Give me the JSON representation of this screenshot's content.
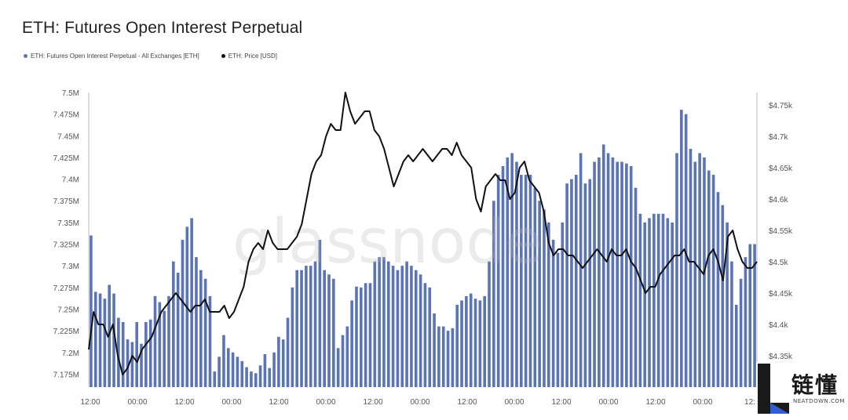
{
  "title": "ETH: Futures Open Interest Perpetual",
  "legend": [
    {
      "label": "ETH: Futures Open Interest Perpetual - All Exchanges [ETH]",
      "color": "#5b74b6"
    },
    {
      "label": "ETH: Price [USD]",
      "color": "#111111"
    }
  ],
  "watermark": "glassnode",
  "logo": {
    "text": "链懂",
    "sub": "NEATDOWN.COM",
    "mark": "L"
  },
  "chart_data": {
    "type": "bar",
    "title": "ETH: Futures Open Interest Perpetual",
    "x_tick_labels": [
      "12:00",
      "00:00",
      "12:00",
      "00:00",
      "12:00",
      "00:00",
      "12:00",
      "00:00",
      "12:00",
      "00:00",
      "12:00",
      "00:00",
      "12:00",
      "00:00",
      "12:"
    ],
    "y_left": {
      "ticks": [
        "7.175M",
        "7.2M",
        "7.225M",
        "7.25M",
        "7.275M",
        "7.3M",
        "7.325M",
        "7.35M",
        "7.375M",
        "7.4M",
        "7.425M",
        "7.45M",
        "7.475M",
        "7.5M"
      ],
      "range": [
        7.16,
        7.5
      ]
    },
    "y_right": {
      "ticks": [
        "$4.35k",
        "$4.4k",
        "$4.45k",
        "$4.5k",
        "$4.55k",
        "$4.6k",
        "$4.65k",
        "$4.7k",
        "$4.75k"
      ],
      "range": [
        4.3,
        4.77
      ]
    },
    "series": [
      {
        "name": "ETH: Futures Open Interest Perpetual - All Exchanges [ETH]",
        "type": "bar",
        "axis": "left",
        "unit": "M ETH",
        "values": [
          7.335,
          7.27,
          7.268,
          7.262,
          7.278,
          7.268,
          7.24,
          7.235,
          7.215,
          7.212,
          7.235,
          7.21,
          7.235,
          7.238,
          7.265,
          7.258,
          7.248,
          7.265,
          7.305,
          7.292,
          7.33,
          7.345,
          7.355,
          7.31,
          7.295,
          7.285,
          7.265,
          7.178,
          7.195,
          7.22,
          7.205,
          7.2,
          7.195,
          7.19,
          7.183,
          7.178,
          7.176,
          7.185,
          7.198,
          7.182,
          7.2,
          7.218,
          7.215,
          7.24,
          7.275,
          7.295,
          7.295,
          7.3,
          7.3,
          7.305,
          7.33,
          7.295,
          7.29,
          7.285,
          7.205,
          7.22,
          7.23,
          7.26,
          7.276,
          7.275,
          7.28,
          7.28,
          7.305,
          7.31,
          7.31,
          7.305,
          7.3,
          7.295,
          7.3,
          7.305,
          7.3,
          7.295,
          7.29,
          7.28,
          7.275,
          7.245,
          7.23,
          7.23,
          7.225,
          7.228,
          7.255,
          7.26,
          7.265,
          7.268,
          7.262,
          7.26,
          7.265,
          7.305,
          7.375,
          7.405,
          7.415,
          7.425,
          7.43,
          7.42,
          7.405,
          7.405,
          7.405,
          7.39,
          7.375,
          7.365,
          7.35,
          7.33,
          7.315,
          7.35,
          7.395,
          7.4,
          7.405,
          7.43,
          7.395,
          7.4,
          7.42,
          7.425,
          7.44,
          7.43,
          7.425,
          7.42,
          7.42,
          7.418,
          7.415,
          7.39,
          7.36,
          7.35,
          7.355,
          7.36,
          7.36,
          7.36,
          7.355,
          7.35,
          7.43,
          7.48,
          7.475,
          7.435,
          7.42,
          7.43,
          7.425,
          7.41,
          7.405,
          7.385,
          7.37,
          7.35,
          7.305,
          7.255,
          7.285,
          7.31,
          7.325,
          7.325
        ]
      },
      {
        "name": "ETH: Price [USD]",
        "type": "line",
        "axis": "right",
        "unit": "$k",
        "values": [
          4.36,
          4.42,
          4.4,
          4.4,
          4.38,
          4.4,
          4.35,
          4.32,
          4.33,
          4.35,
          4.34,
          4.36,
          4.37,
          4.38,
          4.4,
          4.42,
          4.43,
          4.44,
          4.45,
          4.44,
          4.43,
          4.42,
          4.43,
          4.43,
          4.44,
          4.42,
          4.42,
          4.42,
          4.43,
          4.41,
          4.42,
          4.44,
          4.46,
          4.5,
          4.52,
          4.53,
          4.52,
          4.55,
          4.53,
          4.52,
          4.52,
          4.52,
          4.53,
          4.54,
          4.56,
          4.6,
          4.64,
          4.66,
          4.67,
          4.7,
          4.72,
          4.71,
          4.71,
          4.77,
          4.74,
          4.72,
          4.73,
          4.74,
          4.74,
          4.71,
          4.7,
          4.68,
          4.65,
          4.62,
          4.64,
          4.66,
          4.67,
          4.66,
          4.67,
          4.68,
          4.67,
          4.66,
          4.67,
          4.68,
          4.68,
          4.67,
          4.69,
          4.67,
          4.66,
          4.65,
          4.6,
          4.58,
          4.62,
          4.63,
          4.64,
          4.63,
          4.63,
          4.6,
          4.61,
          4.65,
          4.66,
          4.63,
          4.62,
          4.61,
          4.58,
          4.53,
          4.51,
          4.52,
          4.52,
          4.51,
          4.51,
          4.5,
          4.49,
          4.5,
          4.51,
          4.52,
          4.51,
          4.5,
          4.52,
          4.51,
          4.51,
          4.52,
          4.5,
          4.49,
          4.47,
          4.45,
          4.46,
          4.46,
          4.48,
          4.49,
          4.5,
          4.51,
          4.51,
          4.52,
          4.5,
          4.5,
          4.49,
          4.48,
          4.51,
          4.52,
          4.5,
          4.47,
          4.54,
          4.55,
          4.52,
          4.5,
          4.49,
          4.49,
          4.5
        ]
      }
    ],
    "grid": false,
    "legend_position": "top-left"
  }
}
